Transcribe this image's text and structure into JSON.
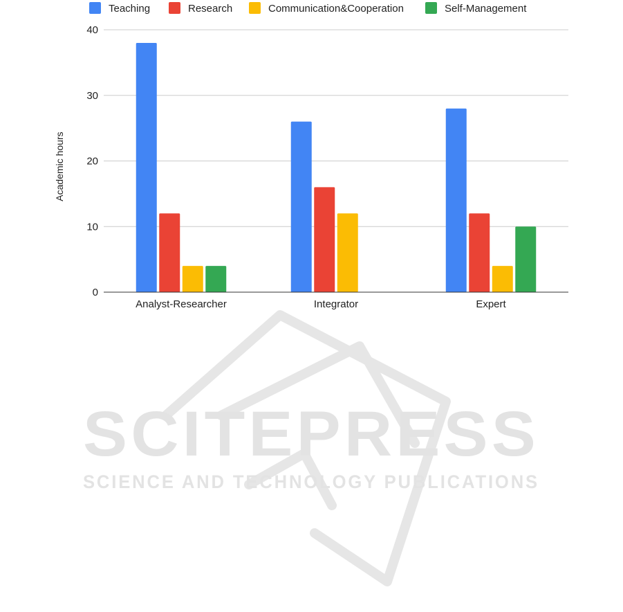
{
  "chart_data": {
    "type": "bar",
    "title": "",
    "xlabel": "",
    "ylabel": "Academic hours",
    "categories": [
      "Analyst-Researcher",
      "Integrator",
      "Expert"
    ],
    "series": [
      {
        "name": "Teaching",
        "values": [
          38,
          26,
          28
        ],
        "color": "#4285F4"
      },
      {
        "name": "Research",
        "values": [
          12,
          16,
          12
        ],
        "color": "#EA4335"
      },
      {
        "name": "Communication&Cooperation",
        "values": [
          4,
          12,
          4
        ],
        "color": "#FBBC04"
      },
      {
        "name": "Self-Management",
        "values": [
          4,
          0,
          10
        ],
        "color": "#34A853"
      }
    ],
    "ylim": [
      0,
      40
    ],
    "yticks": [
      0,
      10,
      20,
      30,
      40
    ],
    "grid": true,
    "legend_position": "top"
  },
  "watermark": {
    "line1": "SCITEPRESS",
    "line2": "SCIENCE AND TECHNOLOGY PUBLICATIONS",
    "color": "#e3e3e3"
  }
}
